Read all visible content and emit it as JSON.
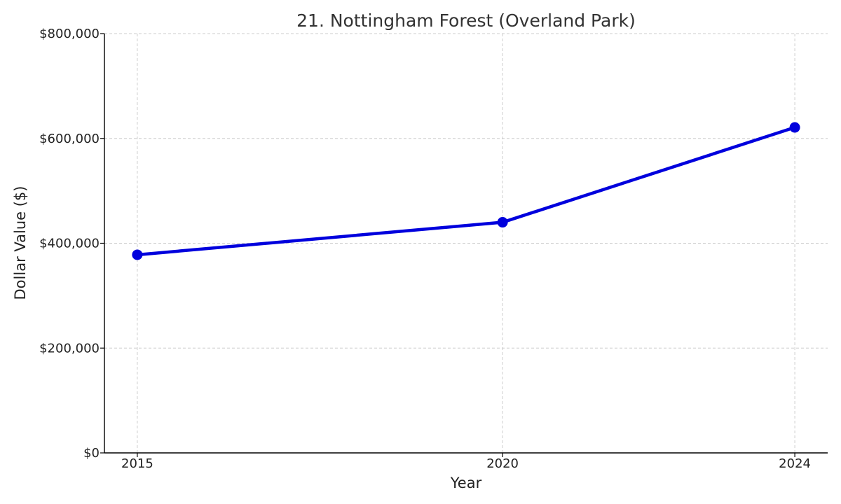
{
  "chart_data": {
    "type": "line",
    "title": "21. Nottingham Forest (Overland Park)",
    "xlabel": "Year",
    "ylabel": "Dollar Value ($)",
    "x": [
      2015,
      2020,
      2024
    ],
    "series": [
      {
        "values": [
          378000,
          440000,
          621000
        ],
        "color": "#0000dd"
      }
    ],
    "xlim": [
      2014.55,
      2024.45
    ],
    "ylim": [
      0,
      800000
    ],
    "xticks": [
      {
        "value": 2015,
        "label": "2015"
      },
      {
        "value": 2020,
        "label": "2020"
      },
      {
        "value": 2024,
        "label": "2024"
      }
    ],
    "yticks": [
      {
        "value": 0,
        "label": "$0"
      },
      {
        "value": 200000,
        "label": "$200,000"
      },
      {
        "value": 400000,
        "label": "$400,000"
      },
      {
        "value": 600000,
        "label": "$600,000"
      },
      {
        "value": 800000,
        "label": "$800,000"
      }
    ],
    "grid": true,
    "marker": "circle"
  }
}
